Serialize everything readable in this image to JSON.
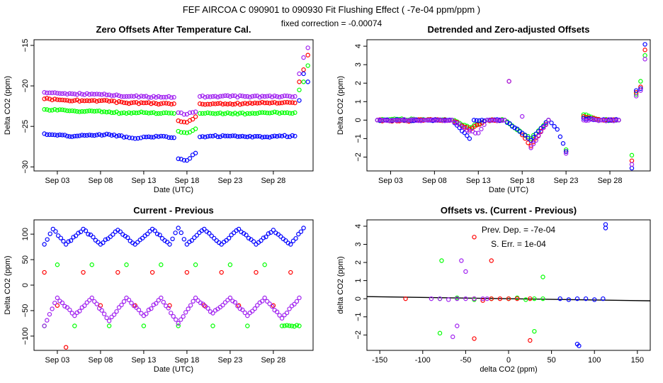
{
  "figure": {
    "title": "FEF   AIRCOA C   090901 to 090930   Fit Flushing Effect ( -7e-04 ppm/ppm )",
    "subtitle": "fixed correction = -0.00074"
  },
  "colors": {
    "blue": "#0000ff",
    "red": "#ff0000",
    "green": "#00ff00",
    "purple": "#a020f0"
  },
  "chart_data": [
    {
      "id": "zero-offsets",
      "type": "scatter",
      "title": "Zero Offsets After Temperature Cal.",
      "xlabel": "Date (UTC)",
      "ylabel": "Delta CO2 (ppm)",
      "xlim": [
        0.3,
        32.6
      ],
      "ylim": [
        -30.5,
        -14.3
      ],
      "xticks": [
        3,
        8,
        13,
        18,
        23,
        28
      ],
      "xticklabels": [
        "Sep 03",
        "Sep 08",
        "Sep 13",
        "Sep 18",
        "Sep 23",
        "Sep 28"
      ],
      "yticks": [
        -30,
        -25,
        -20,
        -15
      ],
      "series": [
        {
          "name": "purple",
          "color": "#a020f0",
          "x": [
            1.5,
            3,
            5,
            7,
            9,
            11,
            13,
            15,
            16.5,
            17,
            18,
            19,
            19.5,
            21,
            23,
            25,
            27,
            29,
            30.5,
            31,
            31.5,
            32
          ],
          "y": [
            -20.8,
            -20.9,
            -21,
            -21,
            -21.1,
            -21.3,
            -21.3,
            -21.4,
            -21.4,
            -23.3,
            -23.5,
            -23.2,
            -21.3,
            -21.3,
            -21.3,
            -21.3,
            -21.3,
            -21.3,
            -21.3,
            -18.5,
            -16.5,
            -15.3
          ]
        },
        {
          "name": "red",
          "color": "#ff0000",
          "x": [
            1.5,
            3,
            5,
            7,
            9,
            11,
            13,
            15,
            16.5,
            17,
            18,
            19,
            19.5,
            21,
            23,
            25,
            27,
            29,
            30.5,
            31,
            31.5,
            32
          ],
          "y": [
            -21.6,
            -21.7,
            -21.8,
            -21.8,
            -21.9,
            -22.1,
            -22.1,
            -22.2,
            -22.2,
            -24.3,
            -24.5,
            -23.8,
            -22.2,
            -22.2,
            -22.2,
            -22.2,
            -22.1,
            -22.1,
            -22.1,
            -19.5,
            -18,
            -16.2
          ]
        },
        {
          "name": "green",
          "color": "#00ff00",
          "x": [
            1.5,
            3,
            5,
            7,
            9,
            11,
            13,
            15,
            16.5,
            17,
            18,
            19,
            19.5,
            21,
            23,
            25,
            27,
            29,
            30.5,
            31,
            31.5,
            32
          ],
          "y": [
            -22.9,
            -23,
            -23.1,
            -23.1,
            -23.2,
            -23.4,
            -23.3,
            -23.4,
            -23.4,
            -25.6,
            -25.8,
            -25.3,
            -23.4,
            -23.4,
            -23.4,
            -23.4,
            -23.3,
            -23.3,
            -23.3,
            -20.5,
            -19.5,
            -17.5
          ]
        },
        {
          "name": "blue",
          "color": "#0000ff",
          "x": [
            1.5,
            3,
            5,
            7,
            9,
            11,
            12,
            13,
            15,
            16.5,
            17,
            18,
            19,
            19.5,
            21,
            23,
            25,
            27,
            29,
            30.5,
            31,
            31.5,
            32
          ],
          "y": [
            -25.9,
            -26.1,
            -26.2,
            -26.1,
            -26,
            -26.3,
            -26.5,
            -26.3,
            -26.2,
            -26.4,
            -29,
            -29.2,
            -28.3,
            -26.3,
            -26.2,
            -26.2,
            -26.3,
            -26.3,
            -26.2,
            -26.2,
            -21.8,
            -18.5,
            -19.5
          ]
        }
      ]
    },
    {
      "id": "detrended",
      "type": "scatter",
      "title": "Detrended and Zero-adjusted Offsets",
      "xlabel": "Date (UTC)",
      "ylabel": "Delta CO2 (ppm)",
      "xlim": [
        0.3,
        32.6
      ],
      "ylim": [
        -2.75,
        4.35
      ],
      "xticks": [
        3,
        8,
        13,
        18,
        23,
        28
      ],
      "xticklabels": [
        "Sep 03",
        "Sep 08",
        "Sep 13",
        "Sep 18",
        "Sep 23",
        "Sep 28"
      ],
      "yticks": [
        -2,
        -1,
        0,
        1,
        2,
        3,
        4
      ],
      "series": [
        {
          "name": "green",
          "color": "#00ff00",
          "x": [
            1.5,
            4,
            7,
            10,
            12,
            14,
            16,
            18,
            19,
            21,
            23,
            25,
            27,
            29,
            30.5,
            31,
            31.5,
            32
          ],
          "y": [
            0,
            0.05,
            0,
            0,
            -0.4,
            0,
            0,
            -0.7,
            -1,
            0,
            -1.6,
            0.3,
            0,
            0,
            -1.9,
            1.4,
            2.1,
            3.5
          ]
        },
        {
          "name": "red",
          "color": "#ff0000",
          "x": [
            1.5,
            4,
            7,
            10,
            12,
            14,
            16,
            16.5,
            18,
            19,
            21,
            23,
            25,
            27,
            29,
            30.5,
            31,
            31.5,
            32
          ],
          "y": [
            0,
            -0.05,
            0,
            0,
            -0.5,
            0,
            0,
            2.1,
            -0.8,
            -1.4,
            0,
            -1.7,
            0.2,
            0,
            0,
            -2.2,
            1.5,
            1.8,
            3.8
          ]
        },
        {
          "name": "blue",
          "color": "#0000ff",
          "x": [
            1.5,
            4,
            7,
            10,
            12,
            12.5,
            14,
            16,
            18,
            19,
            21,
            22,
            23,
            25,
            27,
            29,
            30.5,
            31,
            31.5,
            32
          ],
          "y": [
            0,
            0,
            0,
            0,
            -1,
            0,
            0,
            0,
            -0.7,
            -1.1,
            0,
            -0.5,
            -1.7,
            0.1,
            0,
            0,
            -2.6,
            1.6,
            1.7,
            4.1
          ]
        },
        {
          "name": "purple",
          "color": "#a020f0",
          "x": [
            1.5,
            4,
            7,
            10,
            12,
            13,
            14,
            16,
            16.5,
            18,
            19,
            21,
            23,
            25,
            27,
            29,
            30.5,
            31,
            31.5,
            32
          ],
          "y": [
            0,
            0,
            0,
            0,
            -0.6,
            -0.7,
            0,
            0,
            2.1,
            0.2,
            -1.5,
            0,
            -1.8,
            0,
            0,
            0,
            -2.4,
            1.3,
            1.6,
            3.3
          ]
        }
      ]
    },
    {
      "id": "current-previous",
      "type": "scatter",
      "title": "Current - Previous",
      "xlabel": "Date (UTC)",
      "ylabel": "Delta CO2 (ppm)",
      "xlim": [
        0.3,
        32.6
      ],
      "ylim": [
        -128,
        128
      ],
      "xticks": [
        3,
        8,
        13,
        18,
        23,
        28
      ],
      "xticklabels": [
        "Sep 03",
        "Sep 08",
        "Sep 13",
        "Sep 18",
        "Sep 23",
        "Sep 28"
      ],
      "yticks": [
        -100,
        -50,
        0,
        50,
        100
      ],
      "series": [
        {
          "name": "blue",
          "color": "#0000ff",
          "x": [
            1.5,
            2.5,
            4,
            6,
            8,
            10,
            12,
            14,
            16,
            17,
            18,
            20,
            22,
            24,
            26,
            28,
            30,
            31.5
          ],
          "y": [
            80,
            110,
            80,
            110,
            80,
            108,
            80,
            110,
            80,
            112,
            80,
            110,
            80,
            110,
            80,
            108,
            80,
            112
          ]
        },
        {
          "name": "green",
          "color": "#00ff00",
          "x": [
            1.5,
            3,
            5,
            7,
            9,
            11,
            13,
            15,
            17,
            19,
            21,
            23,
            25,
            27,
            29,
            31
          ],
          "y": [
            -80,
            40,
            -80,
            40,
            -80,
            40,
            -80,
            40,
            -80,
            40,
            -80,
            40,
            -80,
            40,
            -80,
            -80
          ]
        },
        {
          "name": "red",
          "color": "#ff0000",
          "x": [
            1.5,
            3,
            4,
            6,
            8,
            10,
            12,
            14,
            16,
            18,
            20,
            22,
            24,
            26,
            28,
            30
          ],
          "y": [
            25,
            -40,
            -122,
            25,
            -40,
            25,
            -40,
            25,
            -40,
            25,
            -40,
            25,
            -40,
            25,
            -40,
            25
          ]
        },
        {
          "name": "purple",
          "color": "#a020f0",
          "x": [
            1.5,
            3,
            5,
            7,
            9,
            11,
            13,
            15,
            17,
            19,
            21,
            23,
            25,
            27,
            29,
            31
          ],
          "y": [
            -80,
            -25,
            -60,
            -25,
            -70,
            -25,
            -60,
            -25,
            -75,
            -25,
            -55,
            -25,
            -60,
            -25,
            -65,
            -25
          ]
        }
      ]
    },
    {
      "id": "offsets-vs-diff",
      "type": "scatter",
      "title": "Offsets vs. (Current - Previous)",
      "xlabel": "delta CO2 (ppm)",
      "ylabel": "delta CO2 (ppm)",
      "xlim": [
        -165,
        165
      ],
      "ylim": [
        -2.85,
        4.35
      ],
      "xticks": [
        -150,
        -100,
        -50,
        0,
        50,
        100,
        150
      ],
      "yticks": [
        -2,
        -1,
        0,
        1,
        2,
        3,
        4
      ],
      "annotations": [
        "Prev. Dep. =  -7e-04",
        "S. Err. =  1e-04"
      ],
      "fit_line": {
        "slope": -0.0007,
        "intercept": 0
      },
      "series": [
        {
          "name": "green",
          "color": "#00ff00",
          "x": [
            -80,
            -60,
            -40,
            -20,
            0,
            10,
            20,
            30,
            40,
            -78,
            -80,
            40,
            30
          ],
          "y": [
            0,
            0.05,
            -0.05,
            0,
            0,
            0.05,
            -0.05,
            0,
            0,
            2.1,
            -1.9,
            1.2,
            -1.8
          ]
        },
        {
          "name": "red",
          "color": "#ff0000",
          "x": [
            -120,
            -40,
            -30,
            -20,
            -10,
            0,
            10,
            25,
            -40,
            -20,
            -40,
            25
          ],
          "y": [
            0,
            0,
            -0.1,
            0,
            0,
            0,
            0,
            0,
            3.4,
            2.1,
            -2.2,
            -2.3
          ]
        },
        {
          "name": "blue",
          "color": "#0000ff",
          "x": [
            60,
            70,
            80,
            90,
            100,
            110,
            113,
            113,
            80,
            82
          ],
          "y": [
            0,
            -0.05,
            0,
            0,
            -0.05,
            0,
            3.9,
            4.1,
            -2.5,
            -2.6
          ]
        },
        {
          "name": "purple",
          "color": "#a020f0",
          "x": [
            -90,
            -80,
            -70,
            -60,
            -50,
            -40,
            -30,
            -25,
            -55,
            -50,
            -65,
            -60
          ],
          "y": [
            0,
            0,
            -0.05,
            0,
            0,
            0,
            0,
            0,
            2.1,
            1.5,
            -2.1,
            -1.5
          ]
        }
      ]
    }
  ]
}
